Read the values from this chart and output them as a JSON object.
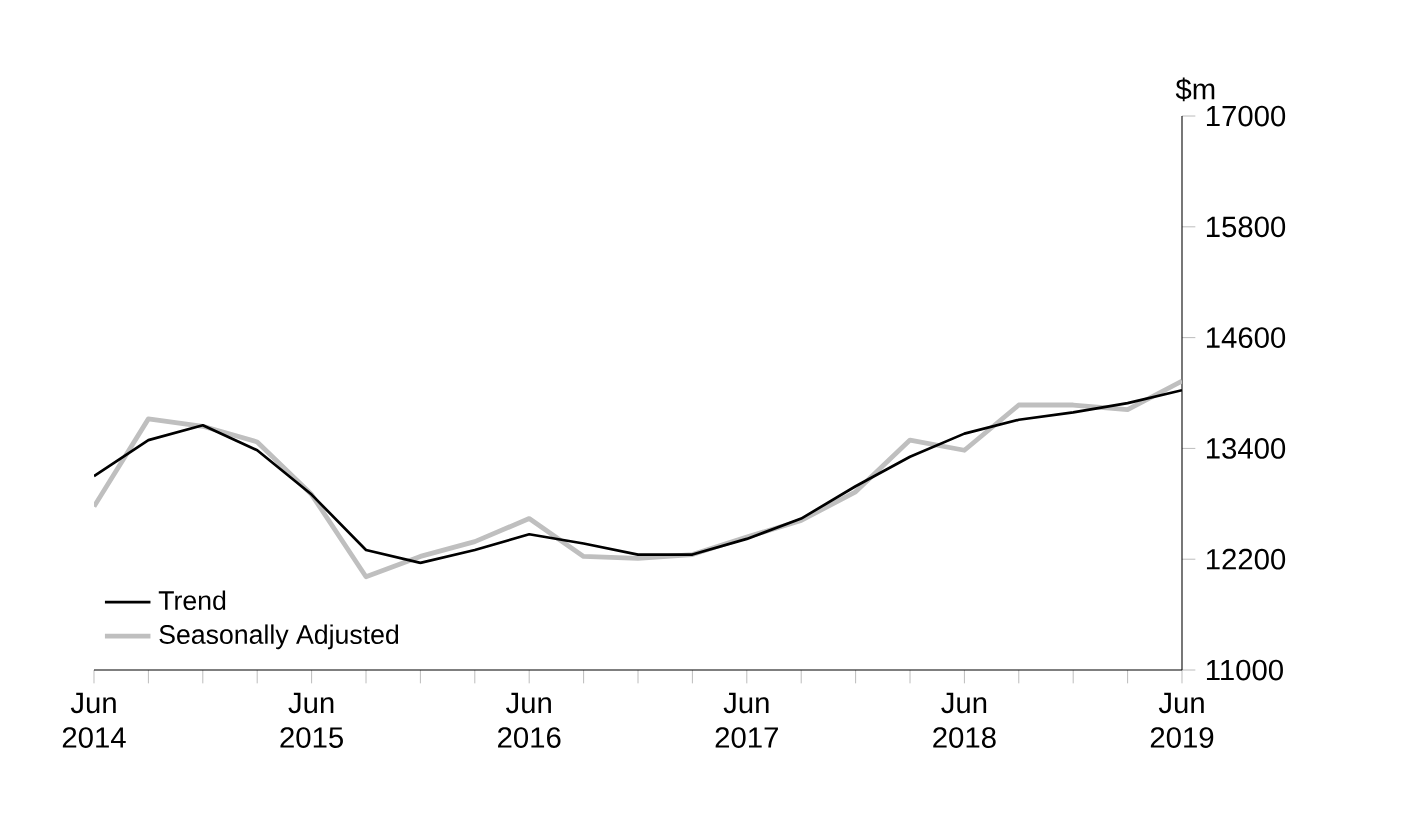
{
  "chart_data": {
    "type": "line",
    "ylabel": "$m",
    "x": [
      "2014-06",
      "2014-09",
      "2014-12",
      "2015-03",
      "2015-06",
      "2015-09",
      "2015-12",
      "2016-03",
      "2016-06",
      "2016-09",
      "2016-12",
      "2017-03",
      "2017-06",
      "2017-09",
      "2017-12",
      "2018-03",
      "2018-06",
      "2018-09",
      "2018-12",
      "2019-03",
      "2019-06"
    ],
    "series": [
      {
        "name": "Trend",
        "color": "#000000",
        "values": [
          13100,
          13490,
          13650,
          13380,
          12900,
          12300,
          12160,
          12300,
          12470,
          12370,
          12250,
          12250,
          12420,
          12640,
          12990,
          13310,
          13560,
          13710,
          13790,
          13890,
          14030
        ]
      },
      {
        "name": "Seasonally Adjusted",
        "color": "#bfbfbf",
        "values": [
          12770,
          13720,
          13640,
          13470,
          12900,
          12010,
          12230,
          12390,
          12640,
          12230,
          12210,
          12250,
          12440,
          12620,
          12930,
          13490,
          13380,
          13870,
          13870,
          13820,
          14130
        ]
      }
    ],
    "xlim": [
      "2014-06",
      "2019-06"
    ],
    "xticks": [
      {
        "value": "2014-06",
        "label": "Jun 2014"
      },
      {
        "value": "2014-09",
        "label": null
      },
      {
        "value": "2014-12",
        "label": null
      },
      {
        "value": "2015-03",
        "label": null
      },
      {
        "value": "2015-06",
        "label": "Jun 2015"
      },
      {
        "value": "2015-09",
        "label": null
      },
      {
        "value": "2015-12",
        "label": null
      },
      {
        "value": "2016-03",
        "label": null
      },
      {
        "value": "2016-06",
        "label": "Jun 2016"
      },
      {
        "value": "2016-09",
        "label": null
      },
      {
        "value": "2016-12",
        "label": null
      },
      {
        "value": "2017-03",
        "label": null
      },
      {
        "value": "2017-06",
        "label": "Jun 2017"
      },
      {
        "value": "2017-09",
        "label": null
      },
      {
        "value": "2017-12",
        "label": null
      },
      {
        "value": "2018-03",
        "label": null
      },
      {
        "value": "2018-06",
        "label": "Jun 2018"
      },
      {
        "value": "2018-09",
        "label": null
      },
      {
        "value": "2018-12",
        "label": null
      },
      {
        "value": "2019-03",
        "label": null
      },
      {
        "value": "2019-06",
        "label": "Jun 2019"
      }
    ],
    "ylim": [
      11000,
      17000
    ],
    "yticks": [
      11000,
      12200,
      13400,
      14600,
      15800,
      17000
    ],
    "legend": "bottom left",
    "grid": false,
    "marker": "none",
    "line_style": "solid"
  }
}
